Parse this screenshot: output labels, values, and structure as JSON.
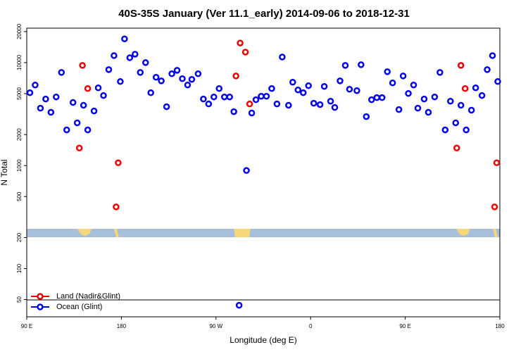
{
  "chart_data": {
    "type": "scatter",
    "title": "40S-35S January (Ver 11.1_early)   2014-09-06 to 2018-12-31",
    "x_label": "Longitude (deg E)",
    "y_label": "N Total",
    "log_y": true,
    "xlim": [
      90,
      540
    ],
    "xticks": [
      {
        "value": 90,
        "label": "90 E"
      },
      180,
      {
        "value": 270,
        "label": "90 W"
      },
      {
        "value": 360,
        "label": "0"
      },
      {
        "value": 450,
        "label": "90 E"
      },
      {
        "value": 540,
        "label": "180"
      }
    ],
    "ylim": [
      34,
      21600
    ],
    "yticks": [
      50,
      100,
      200,
      500,
      1000,
      2000,
      5000,
      10000,
      20000
    ],
    "legend": "bottom-left",
    "series": [
      {
        "name": "Land (Nadir&Glint)",
        "color": "#ee0000",
        "x": [
          140,
          143,
          148,
          175,
          177,
          289,
          293,
          298,
          302,
          499,
          503,
          507,
          535,
          537
        ],
        "values": [
          1480,
          9390,
          5600,
          397,
          1065,
          7420,
          15500,
          12650,
          3970,
          1480,
          9390,
          5600,
          397,
          1065
        ]
      },
      {
        "name": "Ocean (Glint)",
        "color": "#0000ee",
        "x": [
          93,
          98,
          103,
          108,
          113,
          118,
          123,
          128,
          134,
          138,
          144,
          148,
          154,
          158,
          163,
          168,
          173,
          179,
          183,
          188,
          193,
          198,
          203,
          208,
          213,
          218,
          223,
          228,
          233,
          238,
          243,
          247,
          253,
          258,
          263,
          268,
          273,
          278,
          283,
          287,
          299,
          304,
          308,
          313,
          318,
          323,
          328,
          333,
          339,
          343,
          348,
          353,
          358,
          363,
          369,
          373,
          379,
          383,
          388,
          393,
          397,
          404,
          408,
          413,
          418,
          423,
          428,
          433,
          438,
          444,
          448,
          453,
          458,
          462,
          468,
          472,
          478,
          483,
          488,
          493,
          498,
          503,
          508,
          513,
          517,
          523,
          528,
          533,
          538,
          292
        ],
        "values": [
          5100,
          6060,
          3610,
          4430,
          3290,
          4640,
          8030,
          2220,
          4100,
          2600,
          3850,
          2220,
          3390,
          5690,
          4790,
          8550,
          11700,
          6550,
          17000,
          11160,
          12070,
          8030,
          10000,
          5100,
          7200,
          6650,
          3730,
          7790,
          8420,
          6980,
          6060,
          6870,
          7790,
          4430,
          3970,
          4640,
          5600,
          4640,
          4640,
          3340,
          896,
          3240,
          4360,
          4710,
          4710,
          5600,
          3970,
          11330,
          3850,
          6450,
          5430,
          5100,
          5970,
          4030,
          3910,
          5870,
          4220,
          3670,
          6650,
          9390,
          5510,
          5340,
          9540,
          2990,
          4360,
          4570,
          4570,
          8160,
          6350,
          3500,
          7420,
          5020,
          6060,
          3610,
          4430,
          3290,
          4640,
          8030,
          2220,
          4220,
          2600,
          3850,
          2220,
          3450,
          5690,
          4790,
          8550,
          11700,
          6550,
          44
        ]
      }
    ]
  }
}
